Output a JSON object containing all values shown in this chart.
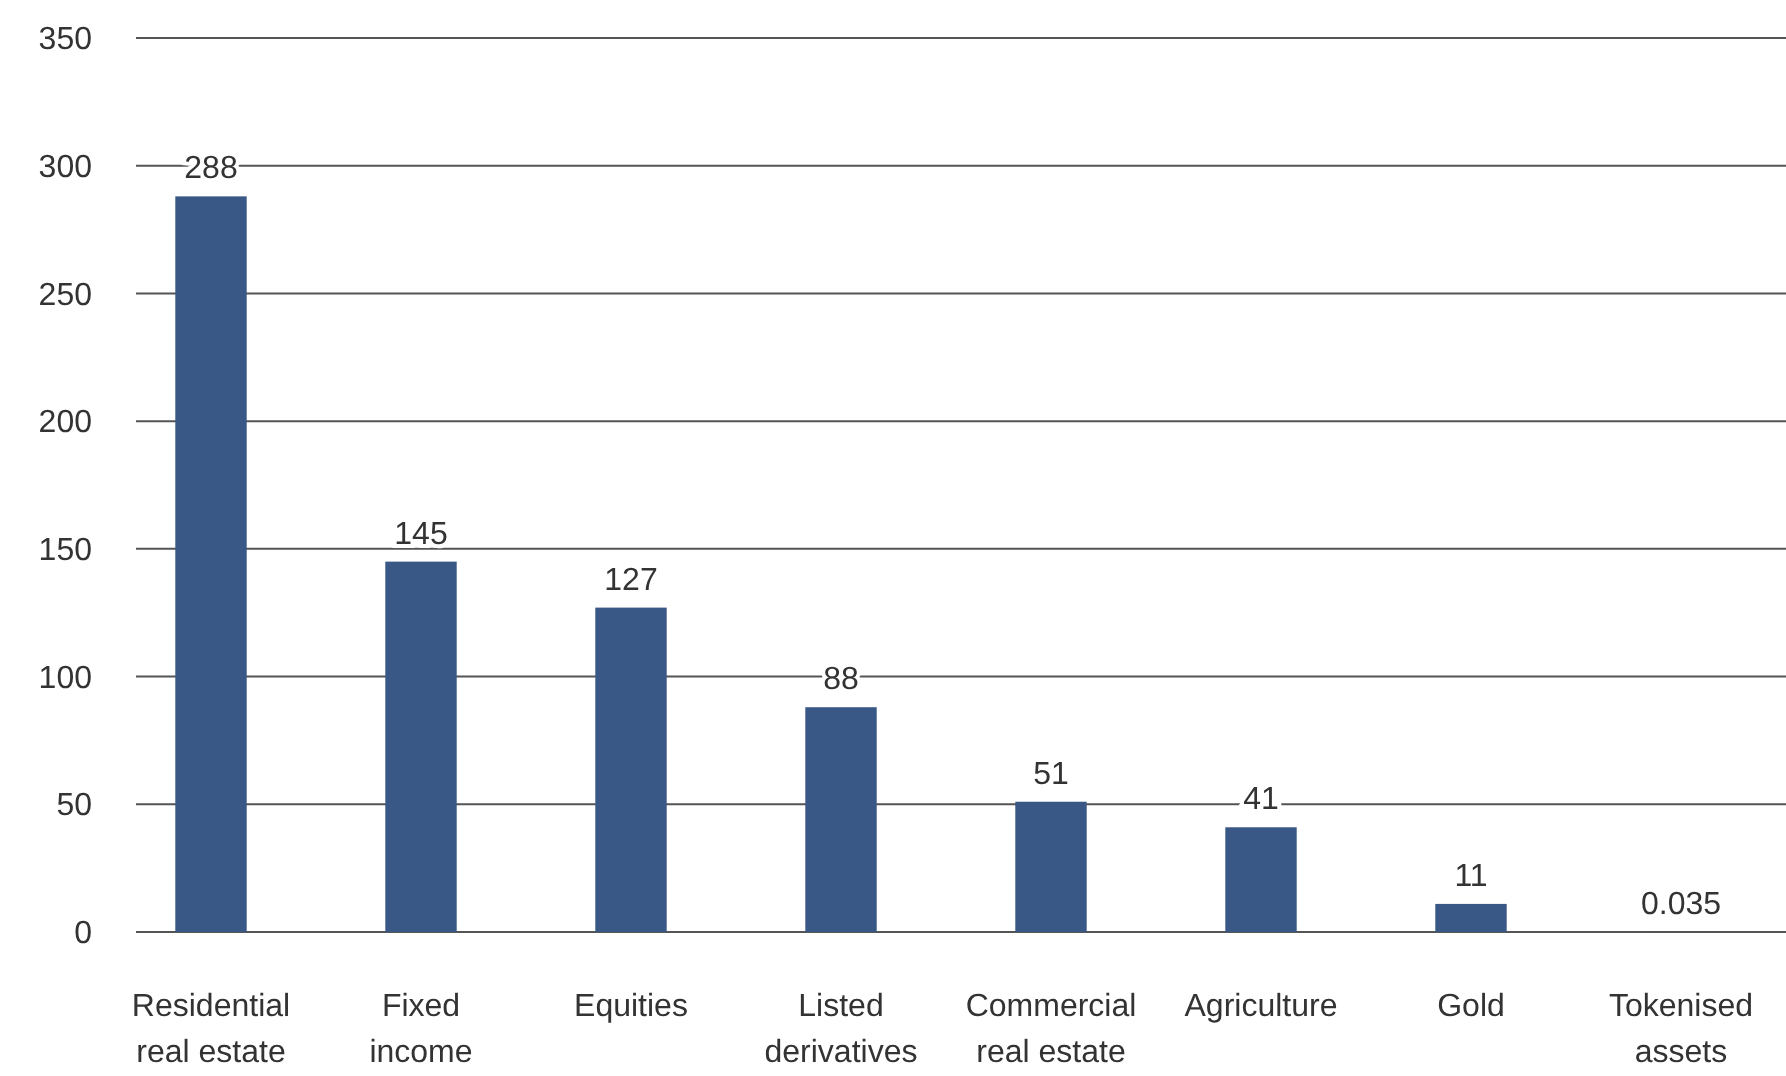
{
  "chart_data": {
    "type": "bar",
    "categories": [
      "Residential real estate",
      "Fixed income",
      "Equities",
      "Listed derivatives",
      "Commercial real estate",
      "Agriculture",
      "Gold",
      "Tokenised assets"
    ],
    "values": [
      288,
      145,
      127,
      88,
      51,
      41,
      11,
      0.035
    ],
    "color": "#3a5886",
    "ylim": [
      0,
      350
    ],
    "yticks": [
      0,
      50,
      100,
      150,
      200,
      250,
      300,
      350
    ],
    "grid": "y",
    "data_labels": true
  }
}
